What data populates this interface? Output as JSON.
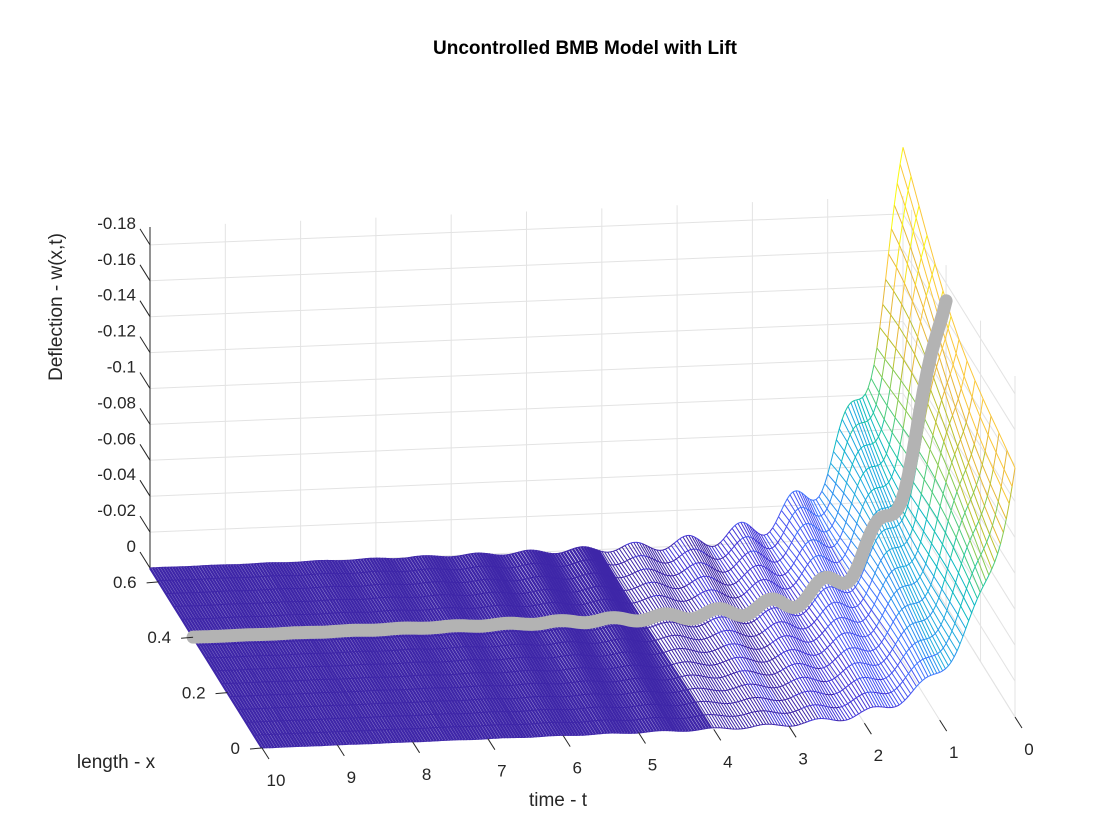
{
  "chart_data": {
    "type": "surface",
    "title": "Uncontrolled BMB Model with Lift",
    "xlabel": "time - t",
    "ylabel": "length - x",
    "zlabel": "Deflection - w(x,t)",
    "x_ticks": [
      "10",
      "9",
      "8",
      "7",
      "6",
      "5",
      "4",
      "3",
      "2",
      "1",
      "0"
    ],
    "y_ticks": [
      "0",
      "0.2",
      "0.4",
      "0.6"
    ],
    "z_ticks": [
      "0",
      "-0.02",
      "-0.04",
      "-0.06",
      "-0.08",
      "-0.1",
      "-0.12",
      "-0.14",
      "-0.16",
      "-0.18"
    ],
    "t_range": [
      0,
      10
    ],
    "x_range": [
      0,
      0.65
    ],
    "w_range": [
      -0.19,
      0
    ],
    "grid": true,
    "colormap": "parula",
    "highlight_line_x": 0.4,
    "highlight_line_color": "#b3b3b3",
    "flat_color": "#3e26a8"
  }
}
